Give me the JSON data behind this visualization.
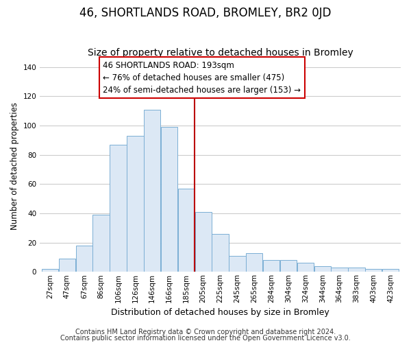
{
  "title": "46, SHORTLANDS ROAD, BROMLEY, BR2 0JD",
  "subtitle": "Size of property relative to detached houses in Bromley",
  "xlabel": "Distribution of detached houses by size in Bromley",
  "ylabel": "Number of detached properties",
  "bar_labels": [
    "27sqm",
    "47sqm",
    "67sqm",
    "86sqm",
    "106sqm",
    "126sqm",
    "146sqm",
    "166sqm",
    "185sqm",
    "205sqm",
    "225sqm",
    "245sqm",
    "265sqm",
    "284sqm",
    "304sqm",
    "324sqm",
    "344sqm",
    "364sqm",
    "383sqm",
    "403sqm",
    "423sqm"
  ],
  "bar_values": [
    2,
    9,
    18,
    39,
    87,
    93,
    111,
    99,
    57,
    41,
    26,
    11,
    13,
    8,
    8,
    6,
    4,
    3,
    3,
    2,
    2
  ],
  "bar_color": "#dce8f5",
  "bar_edgecolor": "#7baed4",
  "vline_color": "#bb0000",
  "annotation_title": "46 SHORTLANDS ROAD: 193sqm",
  "annotation_line1": "← 76% of detached houses are smaller (475)",
  "annotation_line2": "24% of semi-detached houses are larger (153) →",
  "annotation_box_facecolor": "#ffffff",
  "annotation_box_edgecolor": "#cc0000",
  "ylim": [
    0,
    145
  ],
  "yticks": [
    0,
    20,
    40,
    60,
    80,
    100,
    120,
    140
  ],
  "footnote1": "Contains HM Land Registry data © Crown copyright and database right 2024.",
  "footnote2": "Contains public sector information licensed under the Open Government Licence v3.0.",
  "bg_color": "#ffffff",
  "grid_color": "#cccccc",
  "title_fontsize": 12,
  "subtitle_fontsize": 10,
  "ylabel_fontsize": 8.5,
  "xlabel_fontsize": 9,
  "tick_fontsize": 7.5,
  "footnote_fontsize": 7,
  "annotation_fontsize": 8.5,
  "vline_bar_index": 8
}
